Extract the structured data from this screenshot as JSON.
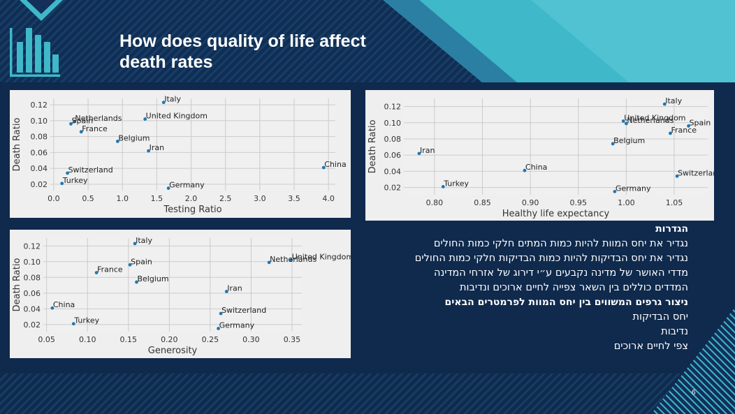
{
  "slide": {
    "title_line1": "How does quality of life affect",
    "title_line2": "death rates",
    "page_number": "6",
    "colors": {
      "background": "#0f2a4d",
      "accent": "#3fb8c9",
      "point": "#1f77b4"
    }
  },
  "definitions": {
    "heading": "הגדרות",
    "lines": [
      "נגדיר את יחס המוות להיות כמות המתים חלקי כמות החולים",
      "נגדיר את יחס הבדיקות להיות כמות הבדיקות חלקי כמות החולים",
      "מדדי האושר של מדינה נקבעים ע״י דירוג של אזרחי המדינה",
      "המדדים כוללים בין השאר צפייה לחיים ארוכים ונדיבות"
    ],
    "graphs_heading": "ניצור גרפים המשווים בין יחס המוות לפרמטרים הבאים",
    "params": [
      "יחס הבדיקות",
      "נדיבות",
      "צפי לחיים ארוכים"
    ]
  },
  "chart_data": [
    {
      "type": "scatter",
      "xlabel": "Testing Ratio",
      "ylabel": "Death Ratio",
      "xlim": [
        -0.05,
        4.1
      ],
      "ylim": [
        0.012,
        0.128
      ],
      "xticks": [
        0.0,
        0.5,
        1.0,
        1.5,
        2.0,
        2.5,
        3.0,
        3.5,
        4.0
      ],
      "xtick_labels": [
        "0.0",
        "0.5",
        "1.0",
        "1.5",
        "2.0",
        "2.5",
        "3.0",
        "3.5",
        "4.0"
      ],
      "yticks": [
        0.02,
        0.04,
        0.06,
        0.08,
        0.1,
        0.12
      ],
      "ytick_labels": [
        "0.02",
        "0.04",
        "0.06",
        "0.08",
        "0.10",
        "0.12"
      ],
      "points": [
        {
          "label": "Italy",
          "x": 1.6,
          "y": 0.123
        },
        {
          "label": "United Kingdom",
          "x": 1.33,
          "y": 0.102
        },
        {
          "label": "Netherlands",
          "x": 0.3,
          "y": 0.099
        },
        {
          "label": "Spain",
          "x": 0.25,
          "y": 0.096
        },
        {
          "label": "France",
          "x": 0.4,
          "y": 0.086
        },
        {
          "label": "Belgium",
          "x": 0.93,
          "y": 0.074
        },
        {
          "label": "Iran",
          "x": 1.38,
          "y": 0.062
        },
        {
          "label": "China",
          "x": 3.93,
          "y": 0.041
        },
        {
          "label": "Switzerland",
          "x": 0.2,
          "y": 0.034
        },
        {
          "label": "Turkey",
          "x": 0.12,
          "y": 0.021
        },
        {
          "label": "Germany",
          "x": 1.67,
          "y": 0.015
        }
      ]
    },
    {
      "type": "scatter",
      "xlabel": "Healthy life expectancy",
      "ylabel": "Death Ratio",
      "xlim": [
        0.768,
        1.085
      ],
      "ylim": [
        0.011,
        0.13
      ],
      "xticks": [
        0.8,
        0.85,
        0.9,
        0.95,
        1.0,
        1.05
      ],
      "xtick_labels": [
        "0.80",
        "0.85",
        "0.90",
        "0.95",
        "1.00",
        "1.05"
      ],
      "yticks": [
        0.02,
        0.04,
        0.06,
        0.08,
        0.1,
        0.12
      ],
      "ytick_labels": [
        "0.02",
        "0.04",
        "0.06",
        "0.08",
        "0.10",
        "0.12"
      ],
      "points": [
        {
          "label": "Italy",
          "x": 1.04,
          "y": 0.123
        },
        {
          "label": "United Kingdom",
          "x": 0.997,
          "y": 0.102
        },
        {
          "label": "Netherlands",
          "x": 1.0,
          "y": 0.099
        },
        {
          "label": "Spain",
          "x": 1.065,
          "y": 0.096
        },
        {
          "label": "France",
          "x": 1.046,
          "y": 0.087
        },
        {
          "label": "Belgium",
          "x": 0.986,
          "y": 0.074
        },
        {
          "label": "Iran",
          "x": 0.784,
          "y": 0.062
        },
        {
          "label": "China",
          "x": 0.894,
          "y": 0.041
        },
        {
          "label": "Switzerland",
          "x": 1.053,
          "y": 0.034
        },
        {
          "label": "Turkey",
          "x": 0.809,
          "y": 0.021
        },
        {
          "label": "Germany",
          "x": 0.988,
          "y": 0.015
        }
      ]
    },
    {
      "type": "scatter",
      "xlabel": "Generosity",
      "ylabel": "Death Ratio",
      "xlim": [
        0.046,
        0.362
      ],
      "ylim": [
        0.011,
        0.13
      ],
      "xticks": [
        0.05,
        0.1,
        0.15,
        0.2,
        0.25,
        0.3,
        0.35
      ],
      "xtick_labels": [
        "0.05",
        "0.10",
        "0.15",
        "0.20",
        "0.25",
        "0.30",
        "0.35"
      ],
      "yticks": [
        0.02,
        0.04,
        0.06,
        0.08,
        0.1,
        0.12
      ],
      "ytick_labels": [
        "0.02",
        "0.04",
        "0.06",
        "0.08",
        "0.10",
        "0.12"
      ],
      "points": [
        {
          "label": "Italy",
          "x": 0.158,
          "y": 0.123
        },
        {
          "label": "United Kingdom",
          "x": 0.349,
          "y": 0.102
        },
        {
          "label": "Netherlands",
          "x": 0.322,
          "y": 0.099
        },
        {
          "label": "Spain",
          "x": 0.152,
          "y": 0.096
        },
        {
          "label": "France",
          "x": 0.111,
          "y": 0.086
        },
        {
          "label": "Belgium",
          "x": 0.16,
          "y": 0.074
        },
        {
          "label": "Iran",
          "x": 0.27,
          "y": 0.062
        },
        {
          "label": "China",
          "x": 0.057,
          "y": 0.041
        },
        {
          "label": "Switzerland",
          "x": 0.263,
          "y": 0.034
        },
        {
          "label": "Turkey",
          "x": 0.083,
          "y": 0.021
        },
        {
          "label": "Germany",
          "x": 0.26,
          "y": 0.015
        }
      ]
    }
  ]
}
